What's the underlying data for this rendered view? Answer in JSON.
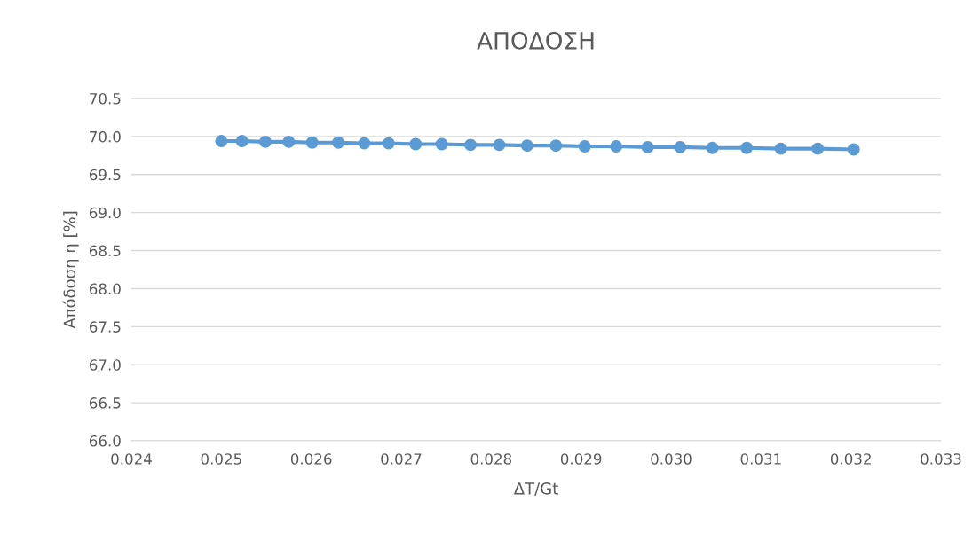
{
  "chart_data": {
    "type": "line",
    "title": "ΑΠΟΔΟΣΗ",
    "xlabel": "ΔT/Gt",
    "ylabel": "Απόδοση η [%]",
    "x": [
      0.025,
      0.02523,
      0.02549,
      0.02575,
      0.02601,
      0.0263,
      0.02659,
      0.02686,
      0.02716,
      0.02745,
      0.02777,
      0.02809,
      0.0284,
      0.02872,
      0.02904,
      0.02939,
      0.02974,
      0.0301,
      0.03046,
      0.03084,
      0.03122,
      0.03163,
      0.03203
    ],
    "series": [
      {
        "color": "#5b9bd5",
        "values": [
          69.94,
          69.94,
          69.93,
          69.93,
          69.92,
          69.92,
          69.91,
          69.91,
          69.9,
          69.9,
          69.89,
          69.89,
          69.88,
          69.88,
          69.87,
          69.87,
          69.86,
          69.86,
          69.85,
          69.85,
          69.84,
          69.84,
          69.83
        ]
      }
    ],
    "xlim": [
      0.024,
      0.033
    ],
    "xticks": [
      0.024,
      0.025,
      0.026,
      0.027,
      0.028,
      0.029,
      {
        "value": 0.03,
        "label": "0.030"
      },
      0.031,
      0.032,
      0.033
    ],
    "ylim": [
      66.0,
      70.5
    ],
    "yticks": [
      {
        "value": 66,
        "label": "66.0"
      },
      66.5,
      {
        "value": 67,
        "label": "67.0"
      },
      67.5,
      {
        "value": 68,
        "label": "68.0"
      },
      68.5,
      {
        "value": 69,
        "label": "69.0"
      },
      69.5,
      {
        "value": 70,
        "label": "70.0"
      },
      70.5
    ],
    "grid": "y",
    "marker": "circle",
    "line_style": "solid"
  }
}
